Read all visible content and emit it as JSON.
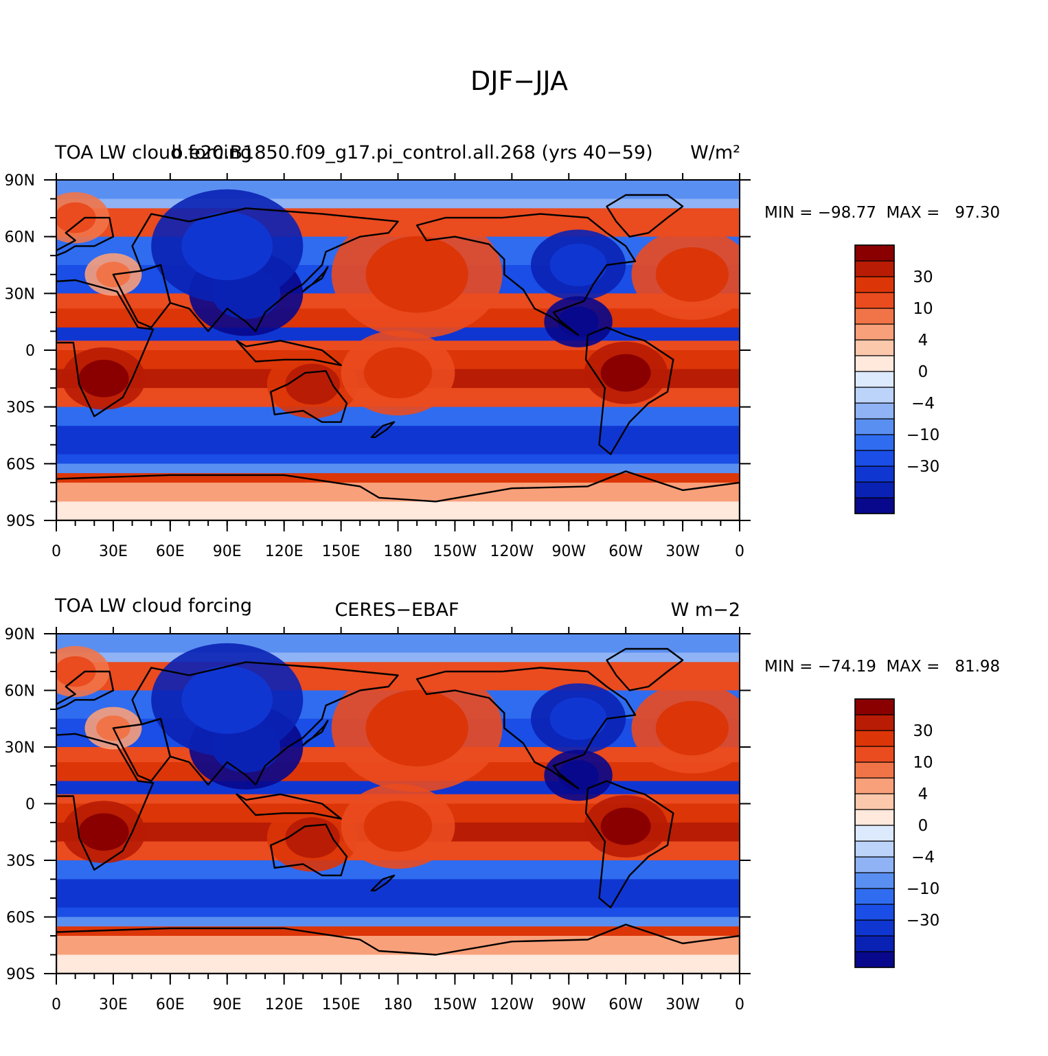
{
  "title": "DJF−JJA",
  "colors": {
    "levels": [
      "#08088c",
      "#0a22b4",
      "#1036d2",
      "#1a4ee6",
      "#2f6cf0",
      "#5a8ff2",
      "#8fb3f5",
      "#bcd3fa",
      "#dde9fd",
      "#ffe8dc",
      "#fcc8ac",
      "#f8a07a",
      "#f17448",
      "#ea4b1f",
      "#dc3508",
      "#b81c04",
      "#8a0000"
    ],
    "land_outline": "#000000"
  },
  "axes": {
    "x_ticks": [
      "0",
      "30E",
      "60E",
      "90E",
      "120E",
      "150E",
      "180",
      "150W",
      "120W",
      "90W",
      "60W",
      "30W",
      "0"
    ],
    "y_ticks": [
      "90N",
      "60N",
      "30N",
      "0",
      "30S",
      "60S",
      "90S"
    ]
  },
  "colorbar_labels": [
    "30",
    "10",
    "4",
    "0",
    "−4",
    "−10",
    "−30"
  ],
  "panels": [
    {
      "left_title": "TOA LW cloud forcing",
      "center_title": "b.e20.B1850.f09_g17.pi_control.all.268 (yrs 40−59)",
      "units": "W/m²",
      "min_max": "MIN = −98.77  MAX =   97.30"
    },
    {
      "left_title": "TOA LW cloud forcing",
      "center_title": "CERES−EBAF",
      "units": "W m−2",
      "min_max": "MIN = −74.19  MAX =   81.98"
    }
  ]
}
